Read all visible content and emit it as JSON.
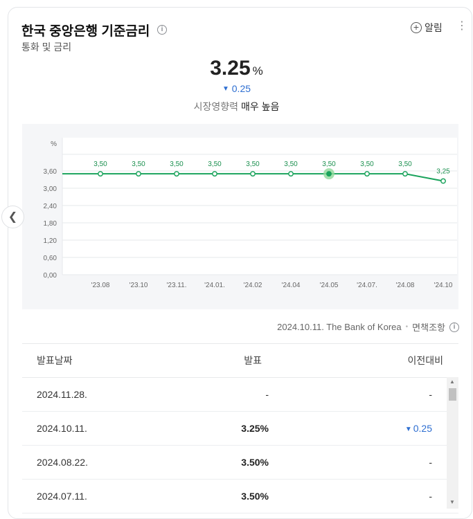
{
  "header": {
    "title": "한국 중앙은행 기준금리",
    "subtitle": "통화 및 금리",
    "info_icon": "info-icon",
    "alarm_label": "알림",
    "alarm_icon": "plus-circle-icon",
    "more_icon": "more-vertical-icon"
  },
  "summary": {
    "value": "3.25",
    "unit": "%",
    "change_arrow": "▼",
    "change": "0.25",
    "impact_label": "시장영향력",
    "impact_level": "매우 높음"
  },
  "chart_data": {
    "type": "line",
    "ylabel": "%",
    "ylim": [
      0,
      3.6
    ],
    "yticks": [
      "0,00",
      "0,60",
      "1,20",
      "1,80",
      "2,40",
      "3,00",
      "3,60"
    ],
    "categories": [
      "",
      "'23.08",
      "'23.10",
      "'23.11.",
      "'24.01.",
      "'24.02",
      "'24.04",
      "'24.05",
      "'24.07.",
      "'24.08",
      "'24.10"
    ],
    "values": [
      3.5,
      3.5,
      3.5,
      3.5,
      3.5,
      3.5,
      3.5,
      3.5,
      3.5,
      3.5,
      3.25
    ],
    "point_labels": [
      "",
      "3,50",
      "3,50",
      "3,50",
      "3,50",
      "3,50",
      "3,50",
      "3,50",
      "3,50",
      "3,50",
      "3,25"
    ],
    "highlight_index": 7,
    "line_color": "#1aa35c",
    "grid": true
  },
  "source": {
    "text": "2024.10.11. The Bank of Korea",
    "disclaimer": "면책조항"
  },
  "table": {
    "headers": [
      "발표날짜",
      "발표",
      "이전대비"
    ],
    "rows": [
      {
        "date": "2024.11.28.",
        "value": "-",
        "change": "-",
        "change_arrow": "",
        "value_bold": false,
        "change_blue": false
      },
      {
        "date": "2024.10.11.",
        "value": "3.25%",
        "change": "0.25",
        "change_arrow": "▼",
        "value_bold": true,
        "change_blue": true
      },
      {
        "date": "2024.08.22.",
        "value": "3.50%",
        "change": "-",
        "change_arrow": "",
        "value_bold": true,
        "change_blue": false
      },
      {
        "date": "2024.07.11.",
        "value": "3.50%",
        "change": "-",
        "change_arrow": "",
        "value_bold": true,
        "change_blue": false
      }
    ]
  },
  "nav": {
    "prev_icon": "chevron-left-icon"
  }
}
